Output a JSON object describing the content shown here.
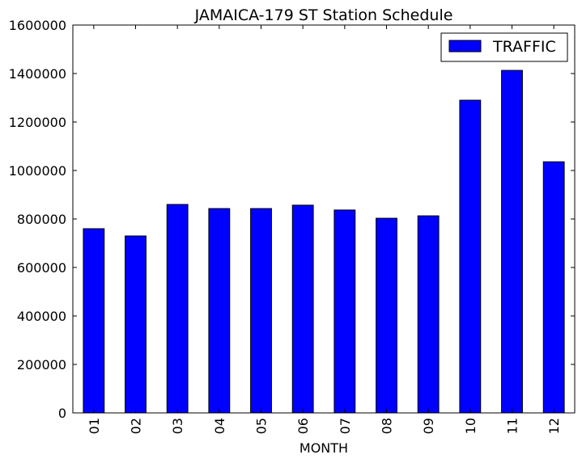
{
  "chart_data": {
    "type": "bar",
    "title": "JAMAICA-179 ST Station Schedule",
    "xlabel": "MONTH",
    "ylabel": "",
    "categories": [
      "01",
      "02",
      "03",
      "04",
      "05",
      "06",
      "07",
      "08",
      "09",
      "10",
      "11",
      "12"
    ],
    "series": [
      {
        "name": "TRAFFIC",
        "values": [
          760000,
          730000,
          860000,
          843000,
          843000,
          857000,
          837000,
          803000,
          813000,
          1290000,
          1413000,
          1036000
        ],
        "color": "#0000ff"
      }
    ],
    "ylim": [
      0,
      1600000
    ],
    "yticks": [
      "0",
      "200000",
      "400000",
      "600000",
      "800000",
      "1000000",
      "1200000",
      "1400000",
      "1600000"
    ],
    "legend_position": "top-right",
    "grid": false
  }
}
